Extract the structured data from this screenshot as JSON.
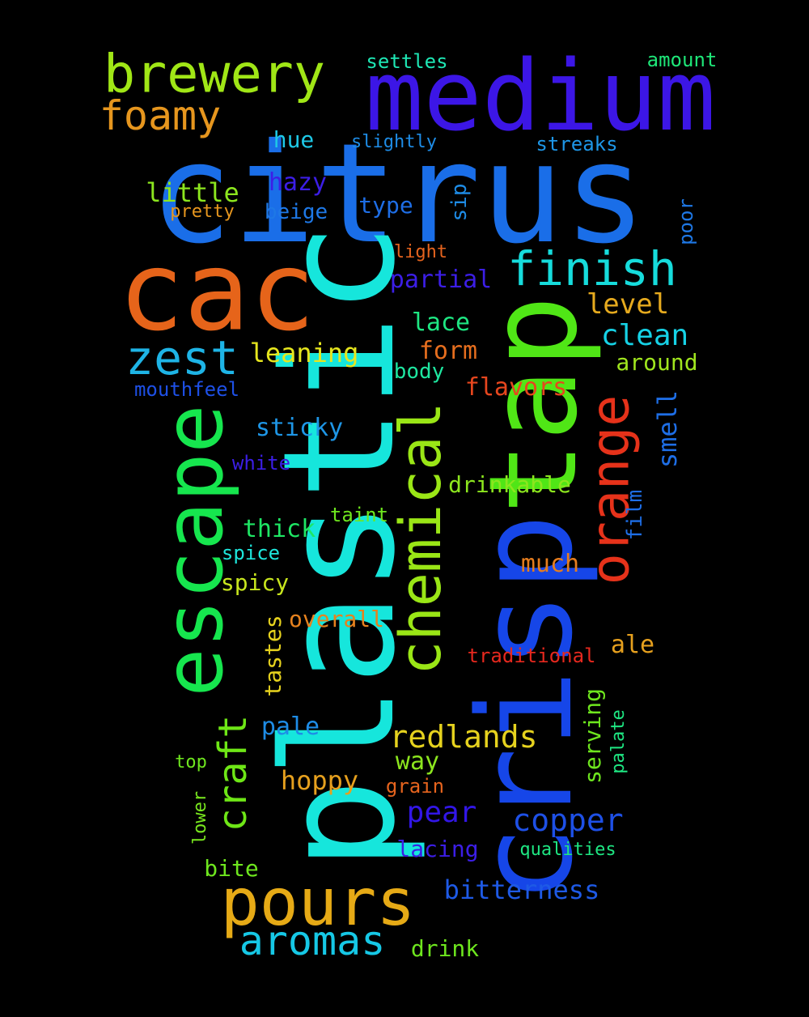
{
  "words": [
    {
      "text": "citrus",
      "color": "#1a6ee8"
    },
    {
      "text": "plastic",
      "color": "#16e6dc"
    },
    {
      "text": "crisp",
      "color": "#1646e8"
    },
    {
      "text": "tap",
      "color": "#50e616"
    },
    {
      "text": "medium",
      "color": "#3c16e6"
    },
    {
      "text": "cac",
      "color": "#e6641a"
    },
    {
      "text": "escape",
      "color": "#16e64e"
    },
    {
      "text": "pours",
      "color": "#e6aa16"
    },
    {
      "text": "chemical",
      "color": "#9ae616"
    },
    {
      "text": "brewery",
      "color": "#a0e616"
    },
    {
      "text": "orange",
      "color": "#e6321a"
    },
    {
      "text": "finish",
      "color": "#16dcdc"
    },
    {
      "text": "foamy",
      "color": "#e6961e"
    },
    {
      "text": "zest",
      "color": "#1eb4e6"
    },
    {
      "text": "aromas",
      "color": "#16c8e6"
    },
    {
      "text": "craft",
      "color": "#6ee616"
    },
    {
      "text": "redlands",
      "color": "#e6d21e"
    },
    {
      "text": "clean",
      "color": "#16d2e6"
    },
    {
      "text": "level",
      "color": "#e6aa1e"
    },
    {
      "text": "copper",
      "color": "#1e50e6"
    },
    {
      "text": "bitterness",
      "color": "#1e5ae6"
    },
    {
      "text": "pear",
      "color": "#3216e6"
    },
    {
      "text": "hoppy",
      "color": "#e6a01e"
    },
    {
      "text": "leaning",
      "color": "#e6e61e"
    },
    {
      "text": "little",
      "color": "#8ce61e"
    },
    {
      "text": "partial",
      "color": "#3c1ee6"
    },
    {
      "text": "sticky",
      "color": "#1e96e6"
    },
    {
      "text": "thick",
      "color": "#1ee664"
    },
    {
      "text": "hazy",
      "color": "#3c1ee6"
    },
    {
      "text": "form",
      "color": "#e66e1e"
    },
    {
      "text": "flavors",
      "color": "#e6461e"
    },
    {
      "text": "lace",
      "color": "#1ee682"
    },
    {
      "text": "smell",
      "color": "#1e6ee6"
    },
    {
      "text": "drinkable",
      "color": "#8ce61e"
    },
    {
      "text": "much",
      "color": "#e67d1e"
    },
    {
      "text": "ale",
      "color": "#e6a01e"
    },
    {
      "text": "around",
      "color": "#a0e61e"
    },
    {
      "text": "way",
      "color": "#8ce61e"
    },
    {
      "text": "pale",
      "color": "#1e8ce6"
    },
    {
      "text": "spicy",
      "color": "#c8e61e"
    },
    {
      "text": "body",
      "color": "#1ee6a0"
    },
    {
      "text": "type",
      "color": "#1e6ee6"
    },
    {
      "text": "overall",
      "color": "#e6821e"
    },
    {
      "text": "craft",
      "color": "#6ee616"
    },
    {
      "text": "serving",
      "color": "#6ee61e"
    },
    {
      "text": "lacing",
      "color": "#3c1ee6"
    },
    {
      "text": "drink",
      "color": "#6ee61e"
    },
    {
      "text": "bite",
      "color": "#6ee61e"
    },
    {
      "text": "hue",
      "color": "#1ec8e6"
    },
    {
      "text": "beige",
      "color": "#1e78e6"
    },
    {
      "text": "sip",
      "color": "#1e8ce6"
    },
    {
      "text": "tastes",
      "color": "#e6d21e"
    },
    {
      "text": "settles",
      "color": "#1ee6b4"
    },
    {
      "text": "streaks",
      "color": "#1e96e6"
    },
    {
      "text": "amount",
      "color": "#1ee678"
    },
    {
      "text": "film",
      "color": "#1e6ee6"
    },
    {
      "text": "poor",
      "color": "#1e78e6"
    },
    {
      "text": "taint",
      "color": "#6ee61e"
    },
    {
      "text": "spice",
      "color": "#1ee6dc"
    },
    {
      "text": "mouthfeel",
      "color": "#1e50e6"
    },
    {
      "text": "white",
      "color": "#3c1ee6"
    },
    {
      "text": "grain",
      "color": "#e6641e"
    },
    {
      "text": "traditional",
      "color": "#e6281e"
    },
    {
      "text": "palate",
      "color": "#1ee682"
    },
    {
      "text": "slightly",
      "color": "#1e8ce6"
    },
    {
      "text": "pretty",
      "color": "#e6961e"
    },
    {
      "text": "light",
      "color": "#e6641e"
    },
    {
      "text": "top",
      "color": "#6ee61e"
    },
    {
      "text": "lower",
      "color": "#78e61e"
    },
    {
      "text": "qualities",
      "color": "#1ee682"
    }
  ]
}
